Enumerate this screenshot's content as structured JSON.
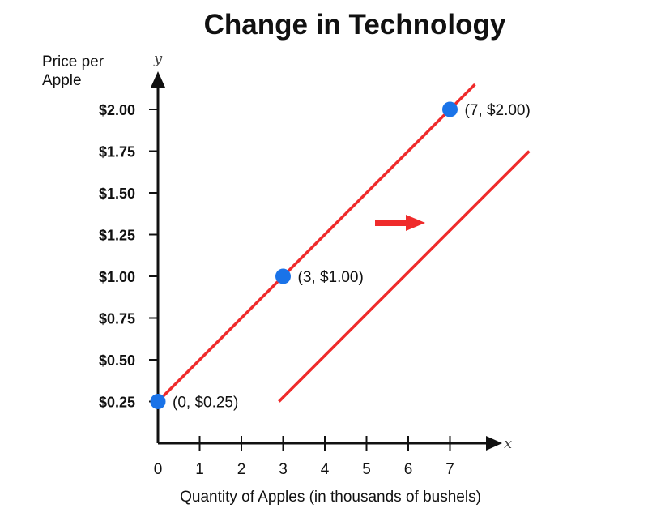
{
  "chart_data": {
    "type": "line",
    "title": "Change in Technology",
    "ylabel": [
      "Price per",
      "Apple"
    ],
    "xlabel": "Quantity of Apples (in thousands of bushels)",
    "x_var": "x",
    "y_var": "y",
    "xlim": [
      0,
      8.4
    ],
    "ylim": [
      0,
      2.4
    ],
    "x_ticks": [
      0,
      1,
      2,
      3,
      4,
      5,
      6,
      7
    ],
    "x_tick_labels": [
      "0",
      "1",
      "2",
      "3",
      "4",
      "5",
      "6",
      "7"
    ],
    "y_ticks": [
      0.25,
      0.5,
      0.75,
      1.0,
      1.25,
      1.5,
      1.75,
      2.0
    ],
    "y_tick_labels": [
      "$0.25",
      "$0.50",
      "$0.75",
      "$1.00",
      "$1.25",
      "$1.50",
      "$1.75",
      "$2.00"
    ],
    "series": [
      {
        "x": [
          0,
          7.6
        ],
        "y": [
          0.25,
          2.15
        ]
      },
      {
        "x": [
          2.9,
          8.9
        ],
        "y": [
          0.25,
          1.75
        ]
      }
    ],
    "points": [
      {
        "x": 0,
        "y": 0.25,
        "label": "(0, $0.25)"
      },
      {
        "x": 3,
        "y": 1.0,
        "label": "(3, $1.00)"
      },
      {
        "x": 7,
        "y": 2.0,
        "label": "(7, $2.00)"
      }
    ],
    "arrow": {
      "direction": "right"
    },
    "colors": {
      "line": "#ef2b2b",
      "point": "#1a73e8",
      "axis": "#111111",
      "arrow": "#ef2b2b"
    },
    "grid": false
  }
}
